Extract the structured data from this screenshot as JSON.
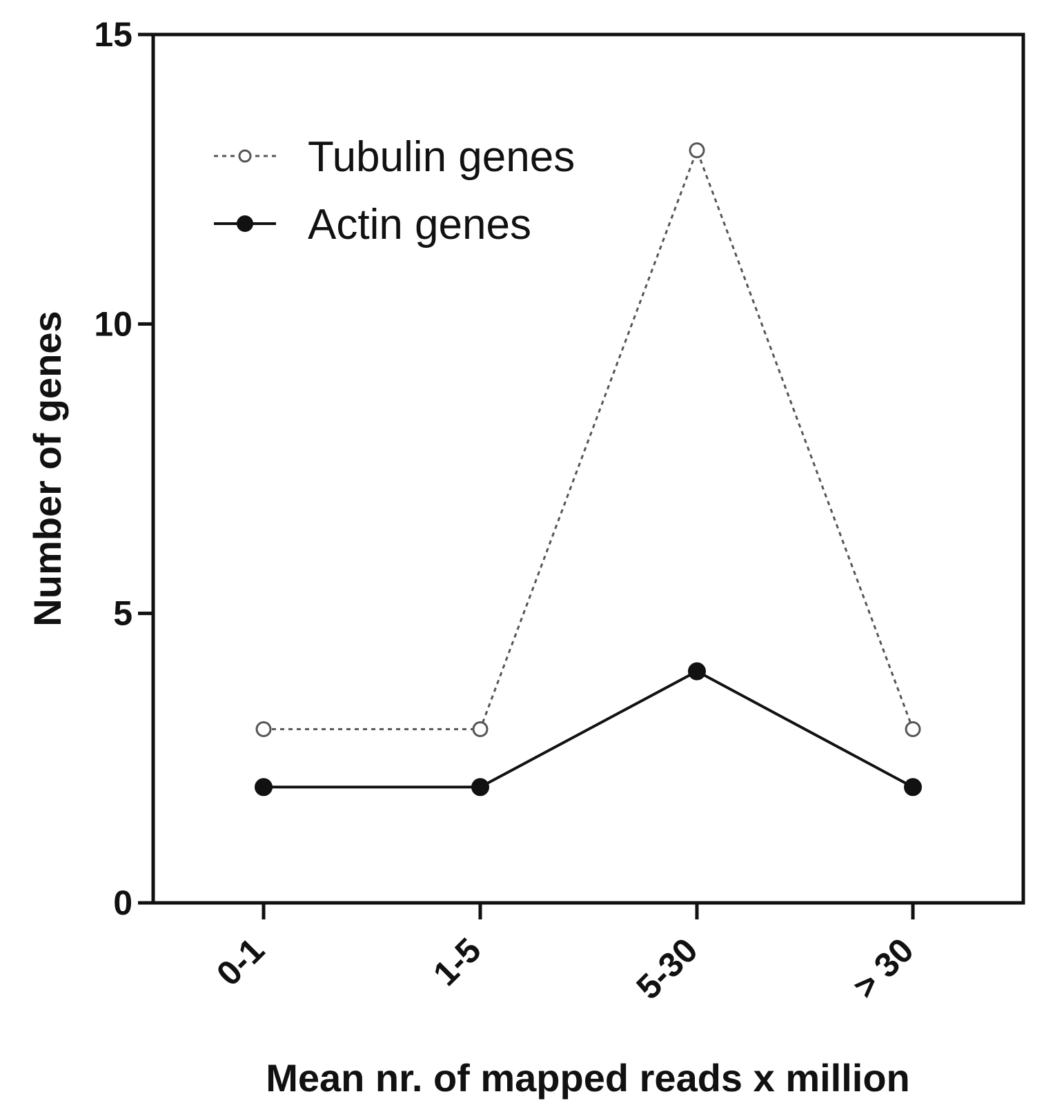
{
  "chart_data": {
    "type": "line",
    "title": "",
    "xlabel": "Mean nr. of mapped reads x million",
    "ylabel": "Number of genes",
    "categories": [
      "0-1",
      "1-5",
      "5-30",
      "> 30"
    ],
    "ylim": [
      0,
      15
    ],
    "yticks": [
      "0",
      "5",
      "10",
      "15"
    ],
    "grid": false,
    "legend_position": "top-left",
    "series": [
      {
        "name": "Tubulin genes",
        "values": [
          3,
          3,
          13,
          3
        ],
        "line_style": "dotted",
        "marker": "open-circle",
        "color": "#555555"
      },
      {
        "name": "Actin genes",
        "values": [
          2,
          2,
          4,
          2
        ],
        "line_style": "solid",
        "marker": "filled-circle",
        "color": "#111111"
      }
    ]
  }
}
